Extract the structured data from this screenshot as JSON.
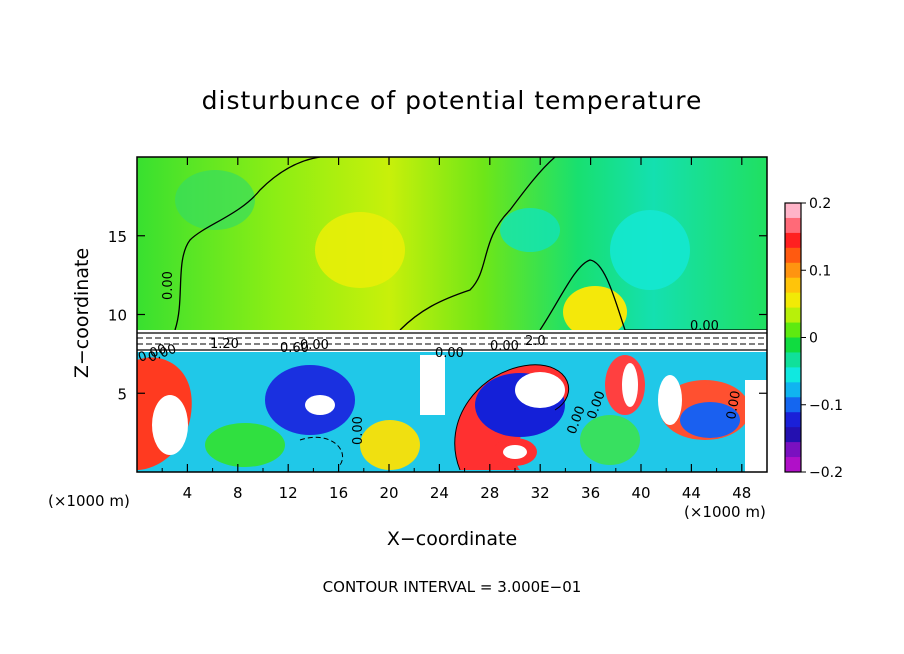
{
  "chart_data": {
    "type": "heatmap",
    "title": "disturbunce of potential temperature",
    "xlabel": "X−coordinate",
    "ylabel": "Z−coordinate",
    "x_unit": "(×1000 m)",
    "y_unit": "(×1000 m)",
    "xlim": [
      0,
      50
    ],
    "ylim": [
      0,
      20
    ],
    "x_ticks": [
      "4",
      "8",
      "12",
      "16",
      "20",
      "24",
      "28",
      "32",
      "36",
      "40",
      "44",
      "48"
    ],
    "y_ticks": [
      "5",
      "10",
      "15"
    ],
    "colorbar": {
      "range": [
        -0.2,
        0.2
      ],
      "tick_labels": [
        "0.2",
        "0.1",
        "0",
        "−0.1",
        "−0.2"
      ],
      "colors": [
        "#ffb4c8",
        "#ff6a78",
        "#ff2020",
        "#ff5a10",
        "#ff9410",
        "#ffc40a",
        "#f2ea06",
        "#b8f00a",
        "#5eea10",
        "#10dc40",
        "#10e09a",
        "#10e8e0",
        "#10b4f0",
        "#1466f0",
        "#1a20d8",
        "#2410b0",
        "#7a10c0",
        "#b010c8"
      ]
    },
    "contour_labels": [
      "0.00",
      "0.00",
      "0.00",
      "1.20",
      "0.60",
      "0.00",
      "0.00",
      "0.00",
      "2.0",
      "0.00",
      "0.00",
      "0.00",
      "0.00",
      "0.00"
    ],
    "footer": "CONTOUR INTERVAL = 3.000E−01"
  }
}
